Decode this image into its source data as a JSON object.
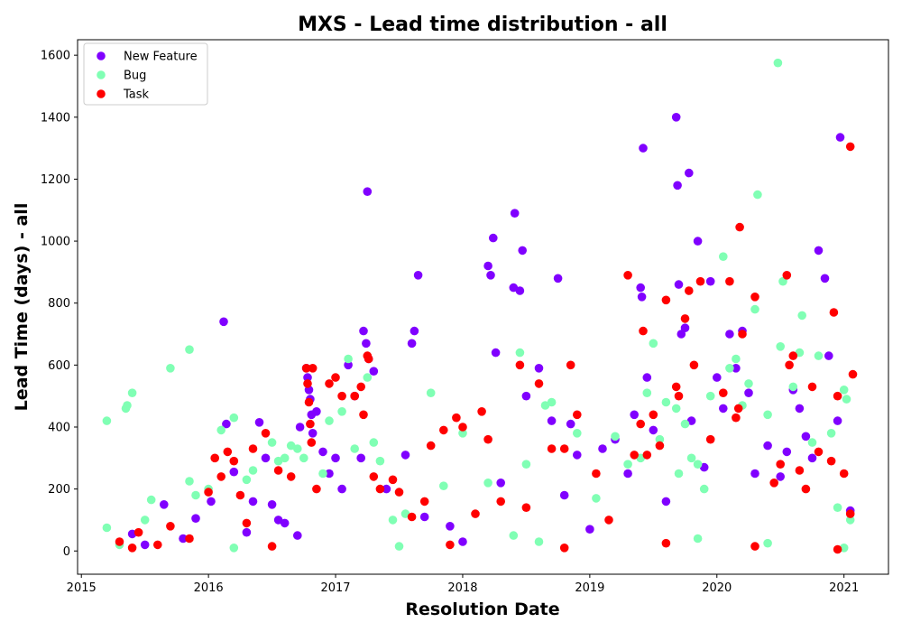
{
  "chart_data": {
    "type": "scatter",
    "title": "MXS - Lead time distribution - all",
    "xlabel": "Resolution Date",
    "ylabel": "Lead Time (days) - all",
    "xlim": [
      2014.97,
      2021.35
    ],
    "ylim": [
      -75,
      1650
    ],
    "x_ticks": [
      2015,
      2016,
      2017,
      2018,
      2019,
      2020,
      2021
    ],
    "x_tick_labels": [
      "2015",
      "2016",
      "2017",
      "2018",
      "2019",
      "2020",
      "2021"
    ],
    "y_ticks": [
      0,
      200,
      400,
      600,
      800,
      1000,
      1200,
      1400,
      1600
    ],
    "y_tick_labels": [
      "0",
      "200",
      "400",
      "600",
      "800",
      "1000",
      "1200",
      "1400",
      "1600"
    ],
    "legend_position": "top-left",
    "grid": false,
    "series": [
      {
        "name": "New Feature",
        "color": "#8000ff",
        "points": [
          [
            2015.4,
            55
          ],
          [
            2015.5,
            20
          ],
          [
            2015.65,
            150
          ],
          [
            2015.8,
            40
          ],
          [
            2015.9,
            105
          ],
          [
            2016.02,
            160
          ],
          [
            2016.12,
            740
          ],
          [
            2016.14,
            410
          ],
          [
            2016.2,
            255
          ],
          [
            2016.3,
            60
          ],
          [
            2016.35,
            160
          ],
          [
            2016.4,
            415
          ],
          [
            2016.45,
            300
          ],
          [
            2016.5,
            150
          ],
          [
            2016.55,
            100
          ],
          [
            2016.6,
            90
          ],
          [
            2016.7,
            50
          ],
          [
            2016.72,
            400
          ],
          [
            2016.77,
            590
          ],
          [
            2016.78,
            560
          ],
          [
            2016.79,
            520
          ],
          [
            2016.8,
            490
          ],
          [
            2016.81,
            440
          ],
          [
            2016.82,
            380
          ],
          [
            2016.85,
            450
          ],
          [
            2016.9,
            320
          ],
          [
            2016.95,
            250
          ],
          [
            2017.0,
            300
          ],
          [
            2017.05,
            200
          ],
          [
            2017.1,
            600
          ],
          [
            2017.15,
            500
          ],
          [
            2017.2,
            300
          ],
          [
            2017.22,
            710
          ],
          [
            2017.24,
            670
          ],
          [
            2017.26,
            620
          ],
          [
            2017.25,
            1160
          ],
          [
            2017.3,
            580
          ],
          [
            2017.4,
            200
          ],
          [
            2017.55,
            310
          ],
          [
            2017.6,
            670
          ],
          [
            2017.62,
            710
          ],
          [
            2017.65,
            890
          ],
          [
            2017.7,
            110
          ],
          [
            2017.9,
            80
          ],
          [
            2018.0,
            30
          ],
          [
            2018.2,
            920
          ],
          [
            2018.22,
            890
          ],
          [
            2018.24,
            1010
          ],
          [
            2018.26,
            640
          ],
          [
            2018.3,
            220
          ],
          [
            2018.4,
            850
          ],
          [
            2018.41,
            1090
          ],
          [
            2018.45,
            840
          ],
          [
            2018.47,
            970
          ],
          [
            2018.5,
            500
          ],
          [
            2018.6,
            590
          ],
          [
            2018.7,
            420
          ],
          [
            2018.75,
            880
          ],
          [
            2018.8,
            180
          ],
          [
            2018.85,
            410
          ],
          [
            2018.9,
            310
          ],
          [
            2019.0,
            70
          ],
          [
            2019.1,
            330
          ],
          [
            2019.2,
            360
          ],
          [
            2019.3,
            250
          ],
          [
            2019.35,
            440
          ],
          [
            2019.4,
            850
          ],
          [
            2019.41,
            820
          ],
          [
            2019.42,
            1300
          ],
          [
            2019.45,
            560
          ],
          [
            2019.5,
            390
          ],
          [
            2019.6,
            160
          ],
          [
            2019.68,
            1400
          ],
          [
            2019.69,
            1180
          ],
          [
            2019.7,
            860
          ],
          [
            2019.72,
            700
          ],
          [
            2019.75,
            720
          ],
          [
            2019.78,
            1220
          ],
          [
            2019.8,
            420
          ],
          [
            2019.85,
            1000
          ],
          [
            2019.9,
            270
          ],
          [
            2019.95,
            870
          ],
          [
            2020.0,
            560
          ],
          [
            2020.05,
            460
          ],
          [
            2020.1,
            700
          ],
          [
            2020.15,
            590
          ],
          [
            2020.2,
            710
          ],
          [
            2020.25,
            510
          ],
          [
            2020.3,
            250
          ],
          [
            2020.4,
            340
          ],
          [
            2020.5,
            240
          ],
          [
            2020.55,
            320
          ],
          [
            2020.6,
            520
          ],
          [
            2020.65,
            460
          ],
          [
            2020.7,
            370
          ],
          [
            2020.75,
            300
          ],
          [
            2020.8,
            970
          ],
          [
            2020.85,
            880
          ],
          [
            2020.88,
            630
          ],
          [
            2020.95,
            420
          ],
          [
            2020.97,
            1335
          ],
          [
            2021.05,
            130
          ]
        ]
      },
      {
        "name": "Bug",
        "color": "#80ffb4",
        "points": [
          [
            2015.2,
            420
          ],
          [
            2015.2,
            75
          ],
          [
            2015.35,
            460
          ],
          [
            2015.36,
            470
          ],
          [
            2015.4,
            510
          ],
          [
            2015.5,
            100
          ],
          [
            2015.55,
            165
          ],
          [
            2015.7,
            590
          ],
          [
            2015.85,
            650
          ],
          [
            2015.85,
            225
          ],
          [
            2015.9,
            180
          ],
          [
            2016.0,
            200
          ],
          [
            2016.1,
            390
          ],
          [
            2016.2,
            430
          ],
          [
            2016.3,
            230
          ],
          [
            2016.35,
            260
          ],
          [
            2016.5,
            350
          ],
          [
            2016.55,
            290
          ],
          [
            2016.6,
            300
          ],
          [
            2016.65,
            340
          ],
          [
            2016.7,
            330
          ],
          [
            2016.75,
            300
          ],
          [
            2016.9,
            250
          ],
          [
            2016.95,
            420
          ],
          [
            2017.05,
            450
          ],
          [
            2017.1,
            620
          ],
          [
            2017.15,
            330
          ],
          [
            2017.25,
            560
          ],
          [
            2017.3,
            350
          ],
          [
            2017.35,
            290
          ],
          [
            2017.45,
            100
          ],
          [
            2017.55,
            120
          ],
          [
            2017.75,
            510
          ],
          [
            2017.85,
            210
          ],
          [
            2018.0,
            380
          ],
          [
            2018.2,
            220
          ],
          [
            2018.4,
            50
          ],
          [
            2018.45,
            640
          ],
          [
            2018.5,
            280
          ],
          [
            2018.65,
            470
          ],
          [
            2018.7,
            480
          ],
          [
            2018.9,
            380
          ],
          [
            2019.05,
            170
          ],
          [
            2019.2,
            370
          ],
          [
            2019.3,
            280
          ],
          [
            2019.4,
            300
          ],
          [
            2019.45,
            510
          ],
          [
            2019.5,
            670
          ],
          [
            2019.55,
            360
          ],
          [
            2019.6,
            480
          ],
          [
            2019.68,
            460
          ],
          [
            2019.7,
            250
          ],
          [
            2019.75,
            410
          ],
          [
            2019.8,
            300
          ],
          [
            2019.85,
            280
          ],
          [
            2019.9,
            200
          ],
          [
            2019.95,
            500
          ],
          [
            2020.05,
            950
          ],
          [
            2020.1,
            590
          ],
          [
            2020.15,
            620
          ],
          [
            2020.2,
            470
          ],
          [
            2020.25,
            540
          ],
          [
            2020.3,
            780
          ],
          [
            2020.32,
            1150
          ],
          [
            2020.4,
            440
          ],
          [
            2020.48,
            1575
          ],
          [
            2020.5,
            660
          ],
          [
            2020.52,
            870
          ],
          [
            2020.6,
            530
          ],
          [
            2020.65,
            640
          ],
          [
            2020.67,
            760
          ],
          [
            2020.75,
            350
          ],
          [
            2020.8,
            630
          ],
          [
            2020.9,
            380
          ],
          [
            2020.95,
            140
          ],
          [
            2021.0,
            520
          ],
          [
            2021.02,
            490
          ],
          [
            2021.05,
            100
          ],
          [
            2015.3,
            20
          ],
          [
            2016.2,
            10
          ],
          [
            2017.5,
            15
          ],
          [
            2018.6,
            30
          ],
          [
            2019.85,
            40
          ],
          [
            2020.4,
            25
          ],
          [
            2021.0,
            10
          ]
        ]
      },
      {
        "name": "Task",
        "color": "#ff0000",
        "points": [
          [
            2015.3,
            30
          ],
          [
            2015.45,
            60
          ],
          [
            2015.6,
            20
          ],
          [
            2015.7,
            80
          ],
          [
            2015.85,
            40
          ],
          [
            2016.0,
            190
          ],
          [
            2016.05,
            300
          ],
          [
            2016.1,
            240
          ],
          [
            2016.15,
            320
          ],
          [
            2016.2,
            290
          ],
          [
            2016.25,
            180
          ],
          [
            2016.3,
            90
          ],
          [
            2016.35,
            330
          ],
          [
            2016.45,
            380
          ],
          [
            2016.55,
            260
          ],
          [
            2016.65,
            240
          ],
          [
            2016.77,
            590
          ],
          [
            2016.78,
            540
          ],
          [
            2016.79,
            480
          ],
          [
            2016.8,
            410
          ],
          [
            2016.81,
            350
          ],
          [
            2016.82,
            590
          ],
          [
            2016.85,
            200
          ],
          [
            2016.95,
            540
          ],
          [
            2017.0,
            560
          ],
          [
            2017.05,
            500
          ],
          [
            2017.15,
            500
          ],
          [
            2017.2,
            530
          ],
          [
            2017.22,
            440
          ],
          [
            2017.25,
            630
          ],
          [
            2017.26,
            620
          ],
          [
            2017.3,
            240
          ],
          [
            2017.35,
            200
          ],
          [
            2017.45,
            230
          ],
          [
            2017.5,
            190
          ],
          [
            2017.6,
            110
          ],
          [
            2017.7,
            160
          ],
          [
            2017.75,
            340
          ],
          [
            2017.85,
            390
          ],
          [
            2017.95,
            430
          ],
          [
            2018.0,
            400
          ],
          [
            2018.1,
            120
          ],
          [
            2018.15,
            450
          ],
          [
            2018.2,
            360
          ],
          [
            2018.3,
            160
          ],
          [
            2018.45,
            600
          ],
          [
            2018.5,
            140
          ],
          [
            2018.6,
            540
          ],
          [
            2018.7,
            330
          ],
          [
            2018.8,
            330
          ],
          [
            2018.85,
            600
          ],
          [
            2018.9,
            440
          ],
          [
            2019.05,
            250
          ],
          [
            2019.15,
            100
          ],
          [
            2019.3,
            890
          ],
          [
            2019.35,
            310
          ],
          [
            2019.4,
            410
          ],
          [
            2019.42,
            710
          ],
          [
            2019.45,
            310
          ],
          [
            2019.5,
            440
          ],
          [
            2019.55,
            340
          ],
          [
            2019.6,
            810
          ],
          [
            2019.68,
            530
          ],
          [
            2019.7,
            500
          ],
          [
            2019.75,
            750
          ],
          [
            2019.78,
            840
          ],
          [
            2019.82,
            600
          ],
          [
            2019.87,
            870
          ],
          [
            2019.95,
            360
          ],
          [
            2020.05,
            510
          ],
          [
            2020.1,
            870
          ],
          [
            2020.15,
            430
          ],
          [
            2020.17,
            460
          ],
          [
            2020.18,
            1045
          ],
          [
            2020.2,
            700
          ],
          [
            2020.3,
            820
          ],
          [
            2020.45,
            220
          ],
          [
            2020.5,
            280
          ],
          [
            2020.55,
            890
          ],
          [
            2020.57,
            600
          ],
          [
            2020.6,
            630
          ],
          [
            2020.65,
            260
          ],
          [
            2020.7,
            200
          ],
          [
            2020.75,
            530
          ],
          [
            2020.8,
            320
          ],
          [
            2020.9,
            290
          ],
          [
            2020.92,
            770
          ],
          [
            2020.95,
            500
          ],
          [
            2021.0,
            250
          ],
          [
            2021.05,
            1305
          ],
          [
            2021.07,
            570
          ],
          [
            2021.05,
            120
          ],
          [
            2015.4,
            10
          ],
          [
            2016.5,
            15
          ],
          [
            2017.9,
            20
          ],
          [
            2018.8,
            10
          ],
          [
            2019.6,
            25
          ],
          [
            2020.3,
            15
          ],
          [
            2020.95,
            5
          ]
        ]
      }
    ]
  }
}
